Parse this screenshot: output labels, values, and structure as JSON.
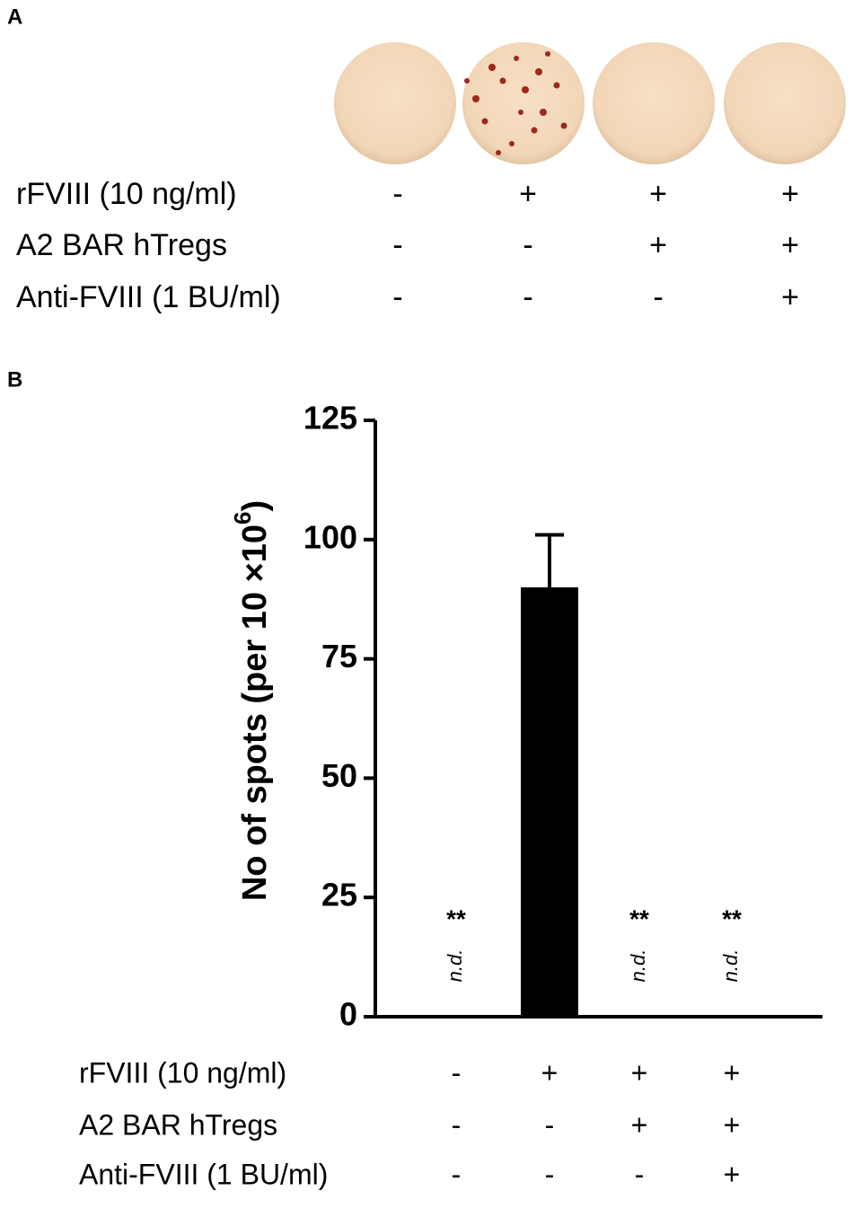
{
  "panel_a": {
    "label": "A",
    "conditions": [
      {
        "label": "rFVIII (10 ng/ml)",
        "signs": [
          "-",
          "+",
          "+",
          "+"
        ]
      },
      {
        "label": "A2 BAR hTregs",
        "signs": [
          "-",
          "-",
          "+",
          "+"
        ]
      },
      {
        "label": "Anti-FVIII (1 BU/ml)",
        "signs": [
          "-",
          "-",
          "-",
          "+"
        ]
      }
    ]
  },
  "chart_data": {
    "type": "bar",
    "panel_label": "B",
    "ylabel": {
      "text": "No of spots (per 10 ×10",
      "sup": "6",
      "end": ")"
    },
    "categories": [
      null,
      null,
      null,
      null
    ],
    "values": [
      null,
      90,
      null,
      null
    ],
    "errors": [
      null,
      11,
      null,
      null
    ],
    "value_labels": [
      "n.d.",
      null,
      "n.d.",
      "n.d."
    ],
    "significance": [
      "**",
      null,
      "**",
      "**"
    ],
    "color": "#000000",
    "ylim": [
      0,
      125
    ],
    "yticks": [
      0,
      25,
      50,
      75,
      100,
      125
    ],
    "grid": false,
    "conditions": [
      {
        "label": "rFVIII (10 ng/ml)",
        "signs": [
          "-",
          "+",
          "+",
          "+"
        ]
      },
      {
        "label": "A2 BAR hTregs",
        "signs": [
          "-",
          "-",
          "+",
          "+"
        ]
      },
      {
        "label": "Anti-FVIII (1 BU/ml)",
        "signs": [
          "-",
          "-",
          "-",
          "+"
        ]
      }
    ]
  }
}
